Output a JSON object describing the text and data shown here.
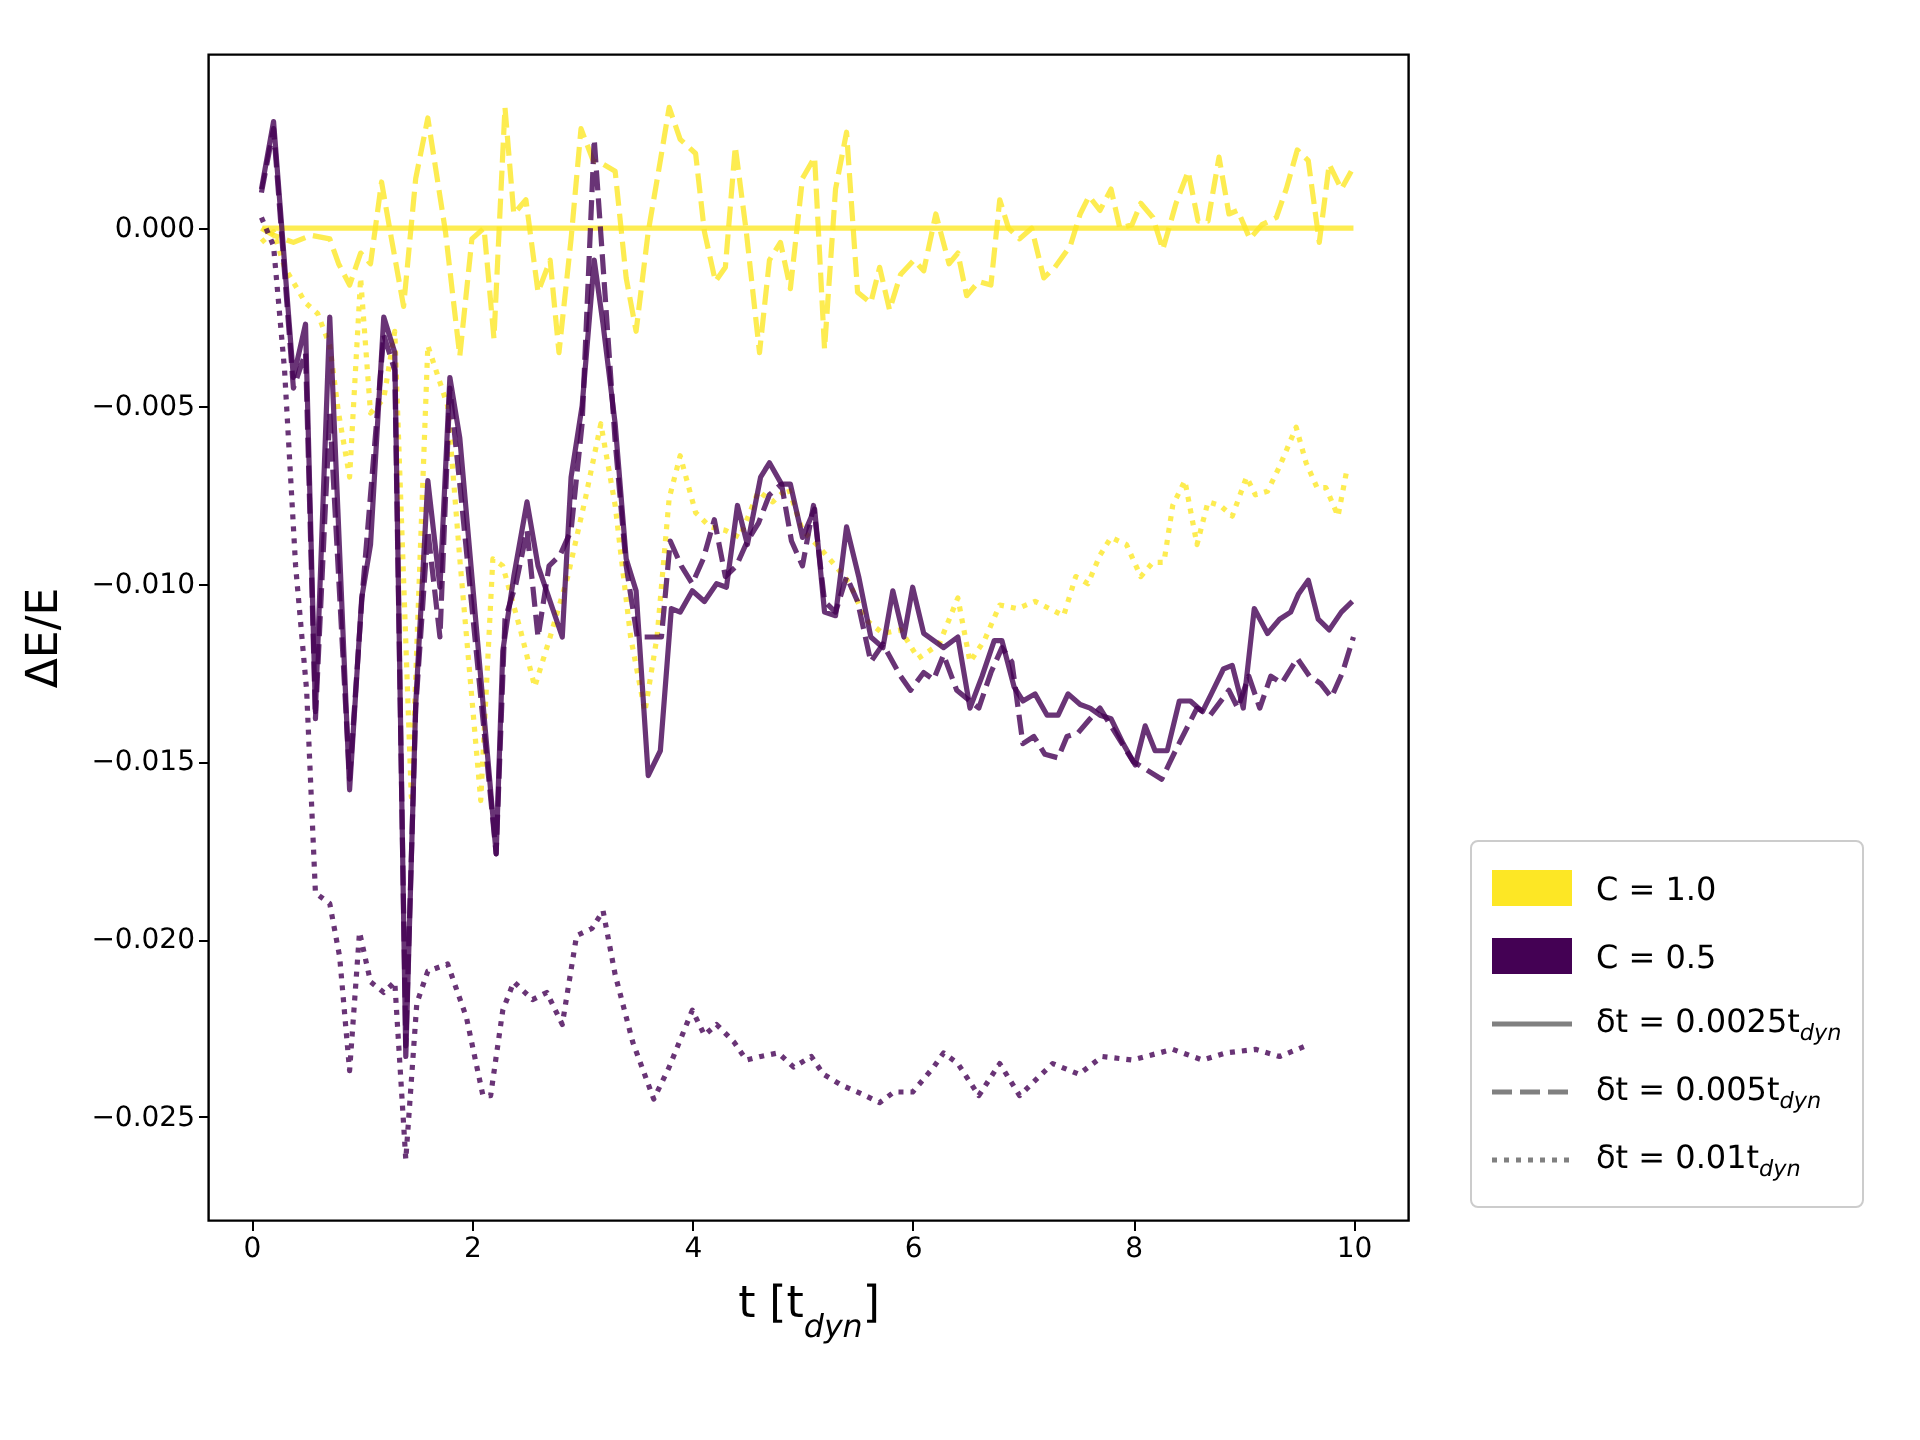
{
  "chart_data": {
    "type": "line",
    "xlabel": "t [t$_{dyn}$]",
    "ylabel": "ΔE/E",
    "xlim": [
      -0.395,
      10.495
    ],
    "ylim": [
      -0.0279,
      0.0049
    ],
    "xticks": [
      0,
      2,
      4,
      6,
      8,
      10
    ],
    "yticks": [
      {
        "value": 0,
        "label": "0.000"
      },
      {
        "value": -0.005,
        "label": "−0.005"
      },
      {
        "value": -0.01,
        "label": "−0.010"
      },
      {
        "value": -0.015,
        "label": "−0.015"
      },
      {
        "value": -0.02,
        "label": "−0.020"
      },
      {
        "value": -0.025,
        "label": "−0.025"
      }
    ],
    "annotations": [
      "C = 1.0",
      "C = 0.5",
      "δt = 0.0025t$_{dyn}$",
      "δt = 0.005t$_{dyn}$",
      "δt = 0.01t$_{dyn}$"
    ],
    "grid": false,
    "series": [
      {
        "color": "#fde725",
        "line_style": "solid",
        "x": [
          0.1,
          1,
          2,
          3,
          4,
          5,
          6,
          7,
          8,
          9,
          10
        ],
        "values": [
          0,
          0,
          0,
          0,
          0,
          0,
          0,
          0,
          0,
          0,
          0
        ]
      },
      {
        "color": "#fde725",
        "line_style": "dashed",
        "x": [
          0.09,
          0.2,
          0.38,
          0.54,
          0.71,
          0.79,
          0.89,
          0.99,
          1.08,
          1.18,
          1.27,
          1.38,
          1.49,
          1.6,
          1.76,
          1.89,
          2.0,
          2.11,
          2.2,
          2.3,
          2.38,
          2.49,
          2.6,
          2.71,
          2.79,
          2.9,
          2.99,
          3.1,
          3.19,
          3.3,
          3.4,
          3.49,
          3.6,
          3.71,
          3.79,
          3.89,
          4.03,
          4.11,
          4.21,
          4.3,
          4.39,
          4.49,
          4.61,
          4.7,
          4.8,
          4.89,
          5.0,
          5.11,
          5.2,
          5.3,
          5.4,
          5.5,
          5.62,
          5.7,
          5.79,
          5.89,
          6.01,
          6.1,
          6.21,
          6.33,
          6.41,
          6.49,
          6.6,
          6.71,
          6.79,
          6.87,
          6.97,
          7.08,
          7.19,
          7.29,
          7.43,
          7.52,
          7.6,
          7.7,
          7.8,
          7.88,
          7.99,
          8.07,
          8.18,
          8.27,
          8.39,
          8.5,
          8.59,
          8.68,
          8.78,
          8.87,
          8.95,
          9.06,
          9.17,
          9.3,
          9.39,
          9.49,
          9.59,
          9.69,
          9.78,
          9.89,
          9.98
        ],
        "values": [
          0,
          -0.0002,
          -0.0004,
          -0.0002,
          -0.0003,
          -0.001,
          -0.0016,
          -0.0007,
          -0.001,
          0.0013,
          -0.0003,
          -0.0022,
          0.0014,
          0.0031,
          -0.0001,
          -0.0036,
          -0.0003,
          0,
          -0.0031,
          0.0034,
          0.0004,
          0.0008,
          -0.0018,
          -0.0009,
          -0.0035,
          -0.0003,
          0.0028,
          0.0019,
          0.0018,
          0.0016,
          -0.0014,
          -0.0029,
          -0.0001,
          0.0019,
          0.0034,
          0.0025,
          0.0021,
          -0.0001,
          -0.0015,
          -0.0011,
          0.0023,
          -0.0001,
          -0.0035,
          -0.0009,
          -0.0004,
          -0.0017,
          0.0014,
          0.002,
          -0.0034,
          0.0011,
          0.0027,
          -0.0018,
          -0.0021,
          -0.0011,
          -0.0023,
          -0.0013,
          -0.0009,
          -0.0012,
          0.0004,
          -0.001,
          -0.0007,
          -0.0019,
          -0.0015,
          -0.0016,
          0.0008,
          0,
          -0.0003,
          0,
          -0.0014,
          -0.0011,
          -0.0005,
          0.0004,
          0.0009,
          0.0005,
          0.0011,
          0,
          0.0001,
          0.0007,
          0.0003,
          -0.0006,
          0.0007,
          0.0016,
          0.0002,
          0.0002,
          0.002,
          0.0004,
          0.0005,
          -0.0003,
          0.0001,
          0.0003,
          0.0011,
          0.0022,
          0.0019,
          -0.0004,
          0.0018,
          0.0011,
          0.0016
        ]
      },
      {
        "color": "#fde725",
        "line_style": "dotted",
        "x": [
          0.09,
          0.2,
          0.3,
          0.49,
          0.6,
          0.71,
          0.79,
          0.89,
          0.99,
          1.08,
          1.2,
          1.3,
          1.45,
          1.6,
          1.78,
          1.89,
          2.08,
          2.19,
          2.28,
          2.44,
          2.57,
          2.71,
          2.87,
          3.03,
          3.17,
          3.3,
          3.44,
          3.57,
          3.68,
          3.79,
          3.89,
          4.03,
          4.16,
          4.3,
          4.43,
          4.6,
          4.73,
          4.87,
          5.0,
          5.16,
          5.3,
          5.43,
          5.57,
          5.73,
          5.89,
          6.05,
          6.24,
          6.41,
          6.52,
          6.65,
          6.79,
          6.95,
          7.11,
          7.24,
          7.37,
          7.48,
          7.59,
          7.7,
          7.8,
          7.94,
          8.07,
          8.18,
          8.28,
          8.36,
          8.47,
          8.58,
          8.68,
          8.79,
          8.9,
          9.03,
          9.11,
          9.22,
          9.33,
          9.48,
          9.57,
          9.67,
          9.75,
          9.86,
          9.94
        ],
        "values": [
          -0.0004,
          -0.0001,
          -0.0011,
          -0.0021,
          -0.0024,
          -0.0033,
          -0.0052,
          -0.007,
          -0.0014,
          -0.0052,
          -0.0048,
          -0.0029,
          -0.016,
          -0.0033,
          -0.005,
          -0.0093,
          -0.0161,
          -0.0093,
          -0.0095,
          -0.0113,
          -0.0129,
          -0.0115,
          -0.0098,
          -0.0076,
          -0.0055,
          -0.0078,
          -0.0115,
          -0.0136,
          -0.0115,
          -0.0076,
          -0.0064,
          -0.008,
          -0.0084,
          -0.0085,
          -0.0087,
          -0.0074,
          -0.0077,
          -0.0073,
          -0.0085,
          -0.009,
          -0.0095,
          -0.01,
          -0.011,
          -0.0114,
          -0.0113,
          -0.0121,
          -0.0117,
          -0.0104,
          -0.0122,
          -0.0116,
          -0.0106,
          -0.0107,
          -0.0105,
          -0.0107,
          -0.0109,
          -0.0098,
          -0.01,
          -0.0092,
          -0.0087,
          -0.0089,
          -0.0098,
          -0.0094,
          -0.0094,
          -0.0078,
          -0.0071,
          -0.0089,
          -0.0077,
          -0.0078,
          -0.0081,
          -0.007,
          -0.0075,
          -0.0074,
          -0.0067,
          -0.0056,
          -0.0066,
          -0.0073,
          -0.0073,
          -0.0081,
          -0.0068
        ]
      },
      {
        "color": "#440154",
        "line_style": "solid",
        "x": [
          0.09,
          0.2,
          0.38,
          0.49,
          0.58,
          0.71,
          0.89,
          1.0,
          1.08,
          1.2,
          1.3,
          1.4,
          1.49,
          1.6,
          1.71,
          1.8,
          1.89,
          2.22,
          2.28,
          2.38,
          2.5,
          2.6,
          2.82,
          2.9,
          3.0,
          3.11,
          3.19,
          3.3,
          3.4,
          3.49,
          3.6,
          3.71,
          3.81,
          3.89,
          4.0,
          4.11,
          4.22,
          4.31,
          4.41,
          4.5,
          4.62,
          4.7,
          4.81,
          4.89,
          5.0,
          5.11,
          5.2,
          5.3,
          5.4,
          5.51,
          5.62,
          5.73,
          5.82,
          5.92,
          6.0,
          6.1,
          6.28,
          6.41,
          6.52,
          6.63,
          6.74,
          6.81,
          6.92,
          7.0,
          7.11,
          7.22,
          7.32,
          7.41,
          7.52,
          7.61,
          7.7,
          7.8,
          7.91,
          8.02,
          8.11,
          8.2,
          8.31,
          8.42,
          8.52,
          8.63,
          8.71,
          8.82,
          8.9,
          9.0,
          9.1,
          9.22,
          9.33,
          9.43,
          9.5,
          9.59,
          9.68,
          9.78,
          9.89,
          9.99
        ],
        "values": [
          0.0011,
          0.003,
          -0.0042,
          -0.0027,
          -0.0136,
          -0.0025,
          -0.0158,
          -0.0104,
          -0.0089,
          -0.0025,
          -0.0035,
          -0.0233,
          -0.0134,
          -0.0071,
          -0.0101,
          -0.0042,
          -0.0059,
          -0.0176,
          -0.0119,
          -0.0098,
          -0.0077,
          -0.0095,
          -0.0115,
          -0.007,
          -0.005,
          -0.0009,
          -0.0027,
          -0.0055,
          -0.0093,
          -0.0102,
          -0.0154,
          -0.0147,
          -0.0107,
          -0.0108,
          -0.0102,
          -0.0105,
          -0.01,
          -0.0101,
          -0.0078,
          -0.0089,
          -0.007,
          -0.0066,
          -0.0072,
          -0.0072,
          -0.0087,
          -0.0079,
          -0.0108,
          -0.0109,
          -0.0084,
          -0.0098,
          -0.0115,
          -0.0118,
          -0.0102,
          -0.0115,
          -0.0101,
          -0.0114,
          -0.0118,
          -0.0115,
          -0.0135,
          -0.0126,
          -0.0116,
          -0.0116,
          -0.0129,
          -0.0133,
          -0.0131,
          -0.0137,
          -0.0137,
          -0.0131,
          -0.0134,
          -0.0135,
          -0.0137,
          -0.0138,
          -0.0145,
          -0.0151,
          -0.014,
          -0.0147,
          -0.0147,
          -0.0133,
          -0.0133,
          -0.0136,
          -0.0131,
          -0.0124,
          -0.0123,
          -0.0135,
          -0.0107,
          -0.0114,
          -0.011,
          -0.0108,
          -0.0103,
          -0.0099,
          -0.011,
          -0.0113,
          -0.0108,
          -0.0105
        ]
      },
      {
        "color": "#440154",
        "line_style": "dashed",
        "x": [
          0.09,
          0.2,
          0.38,
          0.49,
          0.58,
          0.71,
          0.89,
          1.0,
          1.2,
          1.3,
          1.4,
          1.49,
          1.6,
          1.71,
          1.8,
          1.9,
          2.22,
          2.3,
          2.4,
          2.5,
          2.6,
          2.7,
          2.8,
          2.9,
          3.0,
          3.11,
          3.2,
          3.3,
          3.4,
          3.5,
          3.6,
          3.72,
          3.8,
          3.9,
          4.0,
          4.1,
          4.2,
          4.3,
          4.4,
          4.5,
          4.6,
          4.7,
          4.81,
          4.9,
          5.0,
          5.1,
          5.2,
          5.3,
          5.4,
          5.5,
          5.62,
          5.73,
          5.89,
          5.98,
          6.1,
          6.19,
          6.28,
          6.4,
          6.6,
          6.71,
          6.81,
          6.9,
          7.0,
          7.1,
          7.2,
          7.32,
          7.4,
          7.5,
          7.61,
          7.7,
          7.8,
          7.9,
          8.0,
          8.26,
          8.4,
          8.58,
          8.7,
          8.87,
          8.95,
          9.05,
          9.15,
          9.25,
          9.35,
          9.49,
          9.6,
          9.7,
          9.8,
          9.9,
          10.0
        ],
        "values": [
          0.001,
          0.0028,
          -0.0045,
          -0.0035,
          -0.0138,
          -0.0052,
          -0.0155,
          -0.0105,
          -0.003,
          -0.004,
          -0.023,
          -0.0135,
          -0.0085,
          -0.0115,
          -0.0045,
          -0.0075,
          -0.0176,
          -0.011,
          -0.01,
          -0.0085,
          -0.0115,
          -0.0095,
          -0.0092,
          -0.0085,
          -0.0055,
          0.0025,
          -0.0015,
          -0.006,
          -0.0095,
          -0.0115,
          -0.0115,
          -0.0115,
          -0.0088,
          -0.0095,
          -0.01,
          -0.0093,
          -0.0082,
          -0.0098,
          -0.0095,
          -0.0088,
          -0.0083,
          -0.0075,
          -0.0072,
          -0.0088,
          -0.0095,
          -0.0078,
          -0.0105,
          -0.0108,
          -0.0098,
          -0.0105,
          -0.0122,
          -0.0117,
          -0.0126,
          -0.013,
          -0.0125,
          -0.0127,
          -0.012,
          -0.013,
          -0.0135,
          -0.0125,
          -0.0118,
          -0.0122,
          -0.0145,
          -0.0143,
          -0.0148,
          -0.0149,
          -0.0143,
          -0.0142,
          -0.0138,
          -0.0135,
          -0.014,
          -0.0145,
          -0.015,
          -0.0155,
          -0.0146,
          -0.0135,
          -0.0137,
          -0.013,
          -0.0135,
          -0.0126,
          -0.0135,
          -0.0126,
          -0.0128,
          -0.0121,
          -0.0126,
          -0.0128,
          -0.0132,
          -0.0125,
          -0.0115
        ]
      },
      {
        "color": "#440154",
        "line_style": "dotted",
        "x": [
          0.09,
          0.2,
          0.3,
          0.4,
          0.5,
          0.58,
          0.71,
          0.8,
          0.89,
          0.98,
          1.08,
          1.2,
          1.3,
          1.4,
          1.5,
          1.6,
          1.78,
          1.95,
          2.1,
          2.17,
          2.28,
          2.38,
          2.55,
          2.68,
          2.82,
          2.95,
          3.09,
          3.19,
          3.3,
          3.46,
          3.65,
          3.79,
          4.0,
          4.11,
          4.22,
          4.38,
          4.49,
          4.62,
          4.78,
          4.92,
          5.08,
          5.19,
          5.35,
          5.57,
          5.7,
          5.83,
          6.0,
          6.19,
          6.28,
          6.41,
          6.6,
          6.79,
          6.97,
          7.27,
          7.51,
          7.72,
          7.99,
          8.36,
          8.63,
          8.84,
          9.11,
          9.33,
          9.57
        ],
        "values": [
          0.0003,
          -0.0005,
          -0.004,
          -0.0095,
          -0.013,
          -0.0187,
          -0.019,
          -0.0205,
          -0.0237,
          -0.0198,
          -0.0212,
          -0.0215,
          -0.0212,
          -0.0262,
          -0.0218,
          -0.0209,
          -0.0207,
          -0.0222,
          -0.0244,
          -0.0244,
          -0.022,
          -0.0212,
          -0.0217,
          -0.0215,
          -0.0224,
          -0.0199,
          -0.0197,
          -0.0192,
          -0.021,
          -0.0229,
          -0.0245,
          -0.0236,
          -0.022,
          -0.0227,
          -0.0224,
          -0.0229,
          -0.0234,
          -0.0233,
          -0.0232,
          -0.0236,
          -0.0233,
          -0.0238,
          -0.0241,
          -0.0244,
          -0.0246,
          -0.0243,
          -0.0243,
          -0.0236,
          -0.0232,
          -0.0235,
          -0.0244,
          -0.0235,
          -0.0244,
          -0.0235,
          -0.0238,
          -0.0233,
          -0.0234,
          -0.0231,
          -0.0234,
          -0.0232,
          -0.0231,
          -0.0233,
          -0.023
        ]
      }
    ]
  }
}
